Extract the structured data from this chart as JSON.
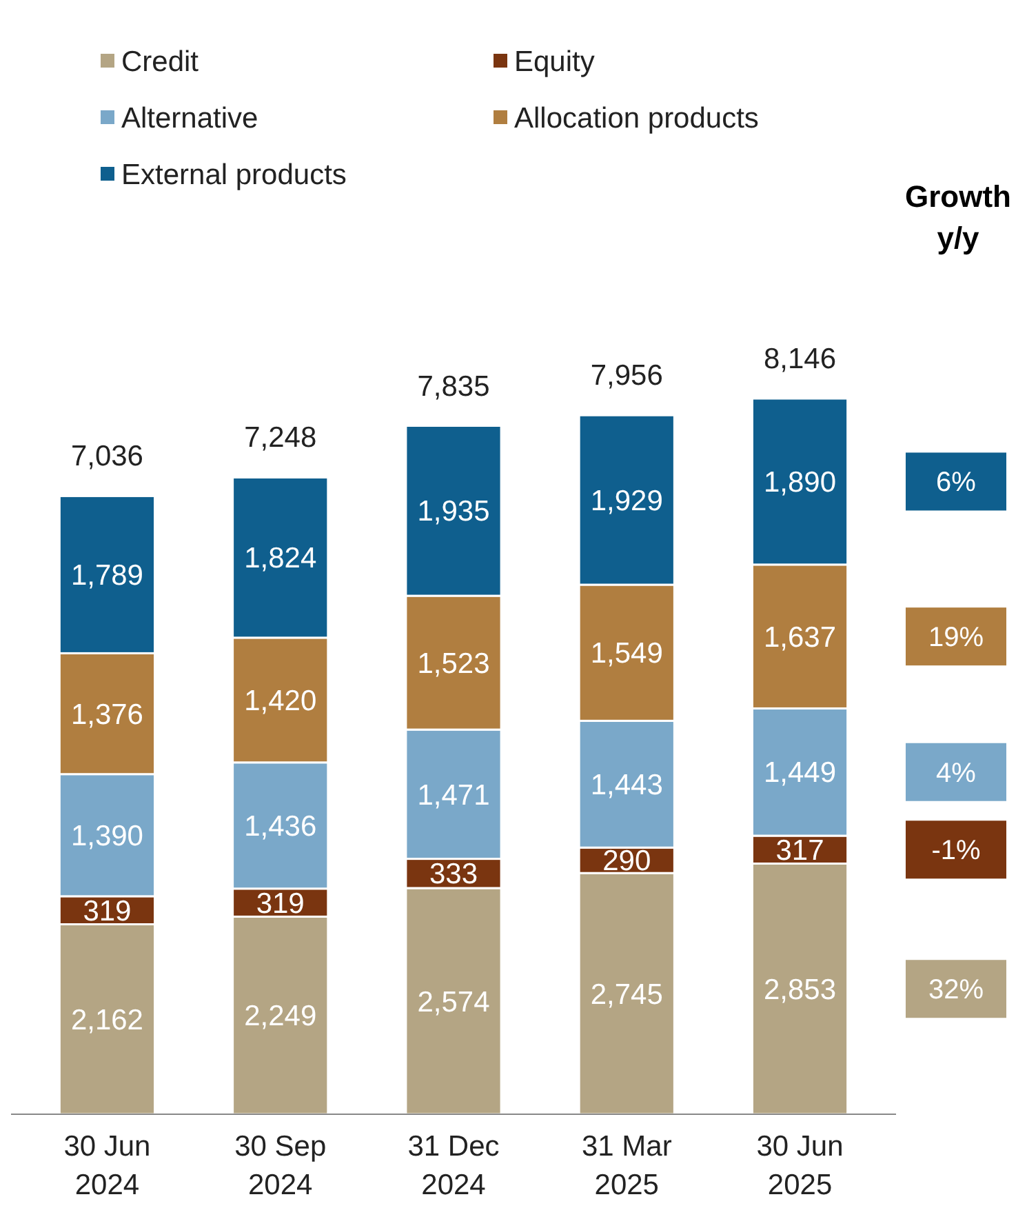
{
  "chart_data": {
    "type": "bar",
    "stacked": true,
    "legend": "top",
    "categories": [
      "30 Jun 2024",
      "30 Sep 2024",
      "31 Dec 2024",
      "31 Mar 2025",
      "30 Jun 2025"
    ],
    "series": [
      {
        "name": "Credit",
        "color": "#b4a584",
        "values": [
          2162,
          2249,
          2574,
          2745,
          2853
        ],
        "value_labels": [
          "2,162",
          "2,249",
          "2,574",
          "2,745",
          "2,853"
        ]
      },
      {
        "name": "Equity",
        "color": "#7a3510",
        "values": [
          319,
          319,
          333,
          290,
          317
        ],
        "value_labels": [
          "319",
          "319",
          "333",
          "290",
          "317"
        ]
      },
      {
        "name": "Alternative",
        "color": "#7aa8c9",
        "values": [
          1390,
          1436,
          1471,
          1443,
          1449
        ],
        "value_labels": [
          "1,390",
          "1,436",
          "1,471",
          "1,443",
          "1,449"
        ]
      },
      {
        "name": "Allocation products",
        "color": "#b07e40",
        "values": [
          1376,
          1420,
          1523,
          1549,
          1637
        ],
        "value_labels": [
          "1,376",
          "1,420",
          "1,523",
          "1,549",
          "1,637"
        ]
      },
      {
        "name": "External products",
        "color": "#0f5f8e",
        "values": [
          1789,
          1824,
          1935,
          1929,
          1890
        ],
        "value_labels": [
          "1,789",
          "1,824",
          "1,935",
          "1,929",
          "1,890"
        ]
      }
    ],
    "totals": [
      "7,036",
      "7,248",
      "7,835",
      "7,956",
      "8,146"
    ],
    "annotations": [
      "Growth y/y",
      "32%",
      "-1%",
      "4%",
      "19%",
      "6%"
    ]
  }
}
